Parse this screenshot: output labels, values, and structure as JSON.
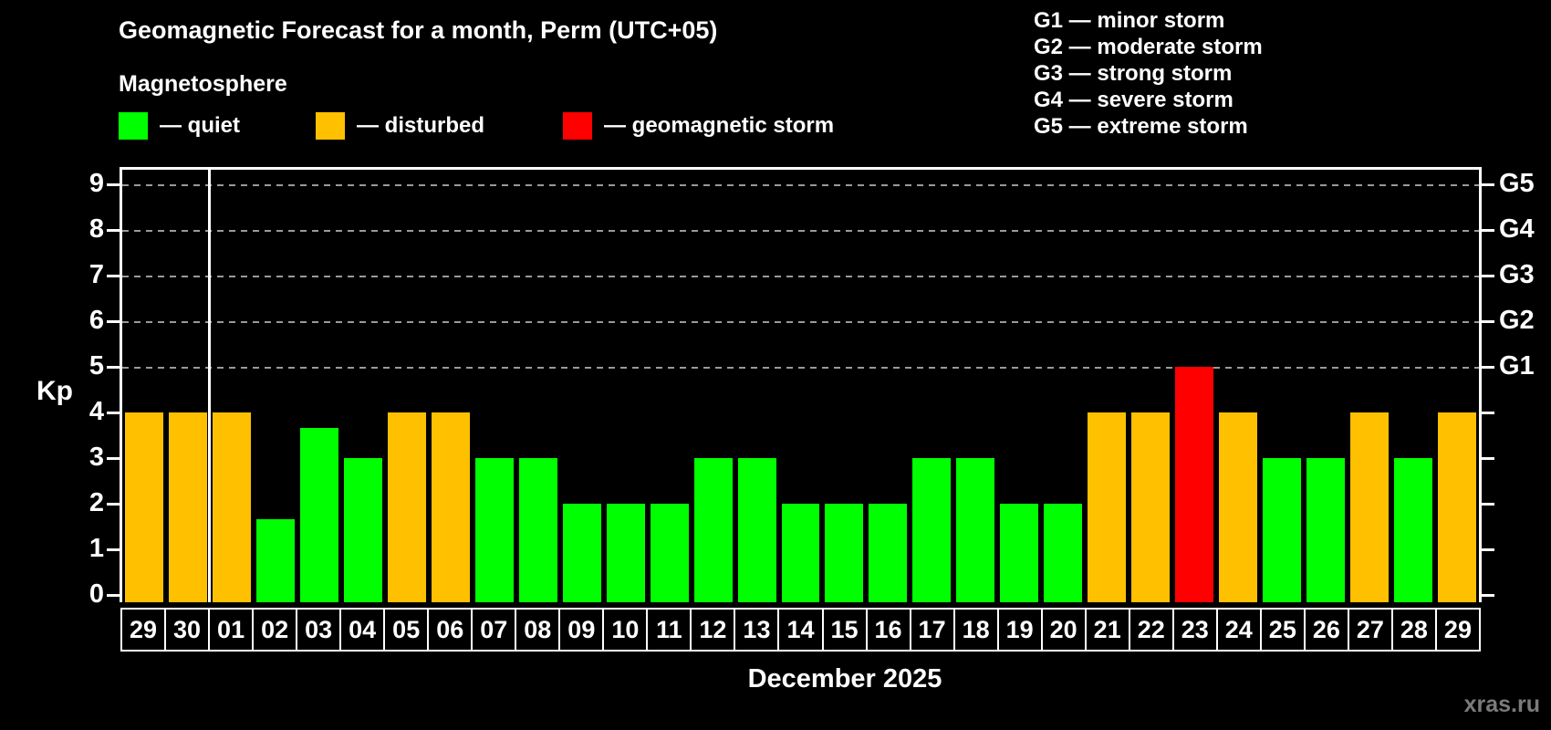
{
  "title": "Geomagnetic Forecast for a month, Perm (UTC+05)",
  "subtitle": "Magnetosphere",
  "legend": {
    "quiet_label": "— quiet",
    "disturbed_label": "— disturbed",
    "storm_label": "— geomagnetic storm"
  },
  "g_legend": {
    "line1": "G1 — minor storm",
    "line2": "G2 — moderate storm",
    "line3": "G3 — strong storm",
    "line4": "G4 — severe storm",
    "line5": "G5 — extreme storm"
  },
  "colors": {
    "quiet": "#00ff00",
    "disturbed": "#ffc000",
    "storm": "#ff0000",
    "grid": "#9a9a9a",
    "watermark": "#7b7b7b"
  },
  "watermark": "xras.ru",
  "chart_data": {
    "type": "bar",
    "title": "Geomagnetic Forecast for a month, Perm (UTC+05)",
    "subtitle": "Magnetosphere",
    "xlabel": "December 2025",
    "ylabel": "Kp",
    "ylim": [
      0,
      9.4
    ],
    "grid": "dashed horizontal at Kp 5-9 only",
    "gridlines": [
      5,
      6,
      7,
      8,
      9
    ],
    "y_ticks": [
      "0",
      "1",
      "2",
      "3",
      "4",
      "5",
      "6",
      "7",
      "8",
      "9"
    ],
    "right_axis_levels": [
      {
        "label": "G1",
        "kp": 5
      },
      {
        "label": "G2",
        "kp": 6
      },
      {
        "label": "G3",
        "kp": 7
      },
      {
        "label": "G4",
        "kp": 8
      },
      {
        "label": "G5",
        "kp": 9
      }
    ],
    "month_divider_after_index": 1,
    "categories": [
      "29",
      "30",
      "01",
      "02",
      "03",
      "04",
      "05",
      "06",
      "07",
      "08",
      "09",
      "10",
      "11",
      "12",
      "13",
      "14",
      "15",
      "16",
      "17",
      "18",
      "19",
      "20",
      "21",
      "22",
      "23",
      "24",
      "25",
      "26",
      "27",
      "28",
      "29"
    ],
    "values": [
      4,
      4,
      4,
      1.67,
      3.67,
      3,
      4,
      4,
      3,
      3,
      2,
      2,
      2,
      3,
      3,
      2,
      2,
      2,
      3,
      3,
      2,
      2,
      4,
      4,
      5,
      4,
      3,
      3,
      4,
      3,
      4
    ],
    "statuses": [
      "disturbed",
      "disturbed",
      "disturbed",
      "quiet",
      "quiet",
      "quiet",
      "disturbed",
      "disturbed",
      "quiet",
      "quiet",
      "quiet",
      "quiet",
      "quiet",
      "quiet",
      "quiet",
      "quiet",
      "quiet",
      "quiet",
      "quiet",
      "quiet",
      "quiet",
      "quiet",
      "disturbed",
      "disturbed",
      "storm",
      "disturbed",
      "quiet",
      "quiet",
      "disturbed",
      "quiet",
      "disturbed"
    ]
  }
}
